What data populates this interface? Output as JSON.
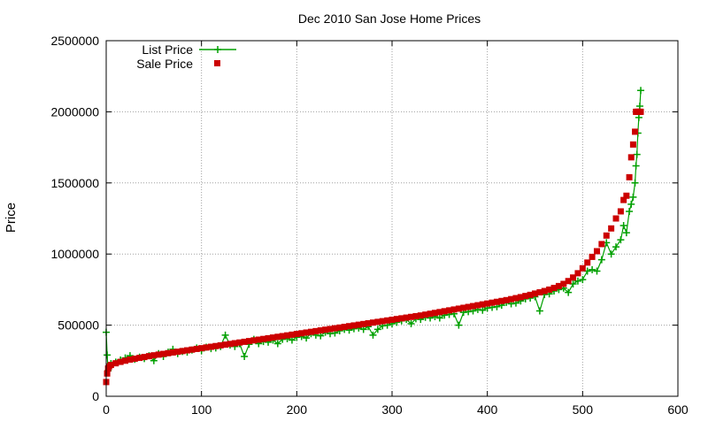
{
  "chart_data": {
    "type": "scatter",
    "title": "Dec 2010 San Jose Home Prices",
    "xlabel": "",
    "ylabel": "Price",
    "xlim": [
      0,
      600
    ],
    "ylim": [
      0,
      2500000
    ],
    "x_ticks": [
      0,
      100,
      200,
      300,
      400,
      500,
      600
    ],
    "y_ticks": [
      0,
      500000,
      1000000,
      1500000,
      2000000,
      2500000
    ],
    "x_tick_labels": [
      "0",
      "100",
      "200",
      "300",
      "400",
      "500",
      "600"
    ],
    "y_tick_labels": [
      "0",
      "500000",
      "1000000",
      "1500000",
      "2000000",
      "2500000"
    ],
    "grid": true,
    "legend_position": "top-left",
    "series": [
      {
        "name": "List Price",
        "style": "linespoints-plus",
        "color": "#00a000",
        "x": [
          0,
          1,
          2,
          3,
          5,
          10,
          15,
          20,
          25,
          30,
          35,
          40,
          45,
          50,
          55,
          60,
          65,
          70,
          75,
          80,
          85,
          90,
          95,
          100,
          105,
          110,
          115,
          120,
          125,
          130,
          135,
          140,
          145,
          150,
          155,
          160,
          165,
          170,
          175,
          180,
          185,
          190,
          195,
          200,
          205,
          210,
          215,
          220,
          225,
          230,
          235,
          240,
          245,
          250,
          255,
          260,
          265,
          270,
          275,
          280,
          285,
          290,
          295,
          300,
          305,
          310,
          315,
          320,
          325,
          330,
          335,
          340,
          345,
          350,
          355,
          360,
          365,
          370,
          375,
          380,
          385,
          390,
          395,
          400,
          405,
          410,
          415,
          420,
          425,
          430,
          435,
          440,
          445,
          450,
          455,
          460,
          465,
          470,
          475,
          480,
          485,
          490,
          495,
          500,
          505,
          510,
          515,
          520,
          525,
          530,
          535,
          540,
          543,
          546,
          549,
          551,
          553,
          555,
          556,
          557,
          558,
          559,
          560,
          561
        ],
        "values": [
          450000,
          290000,
          180000,
          205000,
          230000,
          240000,
          255000,
          270000,
          285000,
          260000,
          275000,
          265000,
          285000,
          250000,
          300000,
          280000,
          310000,
          330000,
          300000,
          315000,
          310000,
          325000,
          340000,
          320000,
          345000,
          335000,
          340000,
          350000,
          430000,
          360000,
          350000,
          370000,
          280000,
          365000,
          400000,
          370000,
          385000,
          380000,
          395000,
          370000,
          400000,
          405000,
          395000,
          415000,
          420000,
          410000,
          440000,
          430000,
          425000,
          450000,
          440000,
          445000,
          460000,
          470000,
          465000,
          475000,
          480000,
          470000,
          490000,
          430000,
          470000,
          495000,
          500000,
          510000,
          520000,
          530000,
          540000,
          510000,
          545000,
          540000,
          555000,
          550000,
          560000,
          550000,
          570000,
          575000,
          580000,
          500000,
          590000,
          595000,
          600000,
          610000,
          605000,
          620000,
          625000,
          630000,
          640000,
          660000,
          650000,
          655000,
          670000,
          685000,
          690000,
          700000,
          600000,
          715000,
          720000,
          740000,
          750000,
          760000,
          730000,
          790000,
          810000,
          820000,
          880000,
          890000,
          880000,
          960000,
          1080000,
          1000000,
          1050000,
          1100000,
          1200000,
          1150000,
          1300000,
          1350000,
          1400000,
          1500000,
          1620000,
          1700000,
          1850000,
          1960000,
          2040000,
          2150000
        ]
      },
      {
        "name": "Sale Price",
        "style": "points-square",
        "color": "#cc0000",
        "x": [
          0,
          1,
          2,
          3,
          5,
          10,
          15,
          20,
          25,
          30,
          35,
          40,
          45,
          50,
          55,
          60,
          65,
          70,
          75,
          80,
          85,
          90,
          95,
          100,
          105,
          110,
          115,
          120,
          125,
          130,
          135,
          140,
          145,
          150,
          155,
          160,
          165,
          170,
          175,
          180,
          185,
          190,
          195,
          200,
          205,
          210,
          215,
          220,
          225,
          230,
          235,
          240,
          245,
          250,
          255,
          260,
          265,
          270,
          275,
          280,
          285,
          290,
          295,
          300,
          305,
          310,
          315,
          320,
          325,
          330,
          335,
          340,
          345,
          350,
          355,
          360,
          365,
          370,
          375,
          380,
          385,
          390,
          395,
          400,
          405,
          410,
          415,
          420,
          425,
          430,
          435,
          440,
          445,
          450,
          455,
          460,
          465,
          470,
          475,
          480,
          485,
          490,
          495,
          500,
          505,
          510,
          515,
          520,
          525,
          530,
          535,
          540,
          543,
          546,
          549,
          551,
          553,
          555,
          556,
          557,
          558,
          559,
          560,
          561
        ],
        "values": [
          100000,
          160000,
          195000,
          210000,
          220000,
          232000,
          242000,
          250000,
          258000,
          264000,
          270000,
          276000,
          282000,
          288000,
          293000,
          298000,
          303000,
          308000,
          313000,
          318000,
          323000,
          328000,
          333000,
          338000,
          343000,
          348000,
          353000,
          358000,
          363000,
          368000,
          373000,
          378000,
          383000,
          388000,
          393000,
          398000,
          403000,
          408000,
          413000,
          418000,
          423000,
          428000,
          433000,
          438000,
          443000,
          448000,
          453000,
          458000,
          463000,
          468000,
          473000,
          478000,
          483000,
          488000,
          493000,
          498000,
          503000,
          508000,
          513000,
          518000,
          523000,
          528000,
          533000,
          538000,
          543000,
          548000,
          553000,
          558000,
          563000,
          568000,
          574000,
          580000,
          586000,
          592000,
          598000,
          604000,
          610000,
          616000,
          622000,
          628000,
          634000,
          640000,
          646000,
          652000,
          658000,
          664000,
          670000,
          676000,
          683000,
          690000,
          697000,
          705000,
          713000,
          722000,
          731000,
          740000,
          750000,
          762000,
          775000,
          790000,
          810000,
          835000,
          865000,
          900000,
          940000,
          980000,
          1020000,
          1070000,
          1130000,
          1180000,
          1250000,
          1300000,
          1380000,
          1410000,
          1540000,
          1680000,
          1770000,
          1860000,
          2000000,
          2000000,
          2000000,
          2000000,
          2000000,
          2000000
        ]
      }
    ]
  }
}
